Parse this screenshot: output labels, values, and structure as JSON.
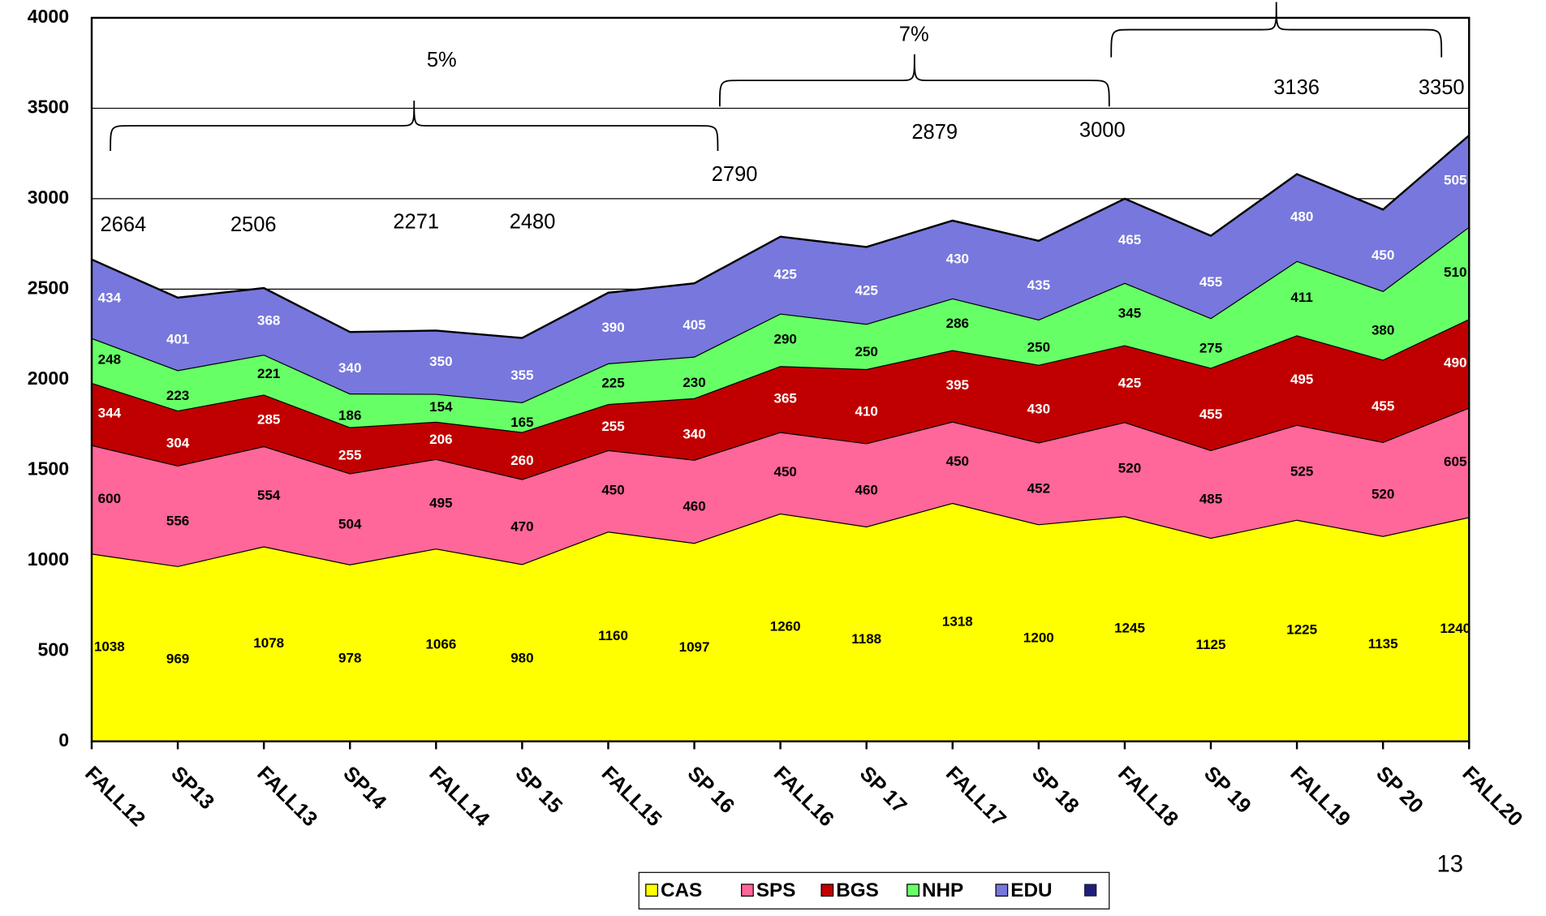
{
  "chart_data": {
    "type": "stacked_area",
    "categories": [
      "FALL12",
      "SP13",
      "FALL13",
      "SP14",
      "FALL14",
      "SP 15",
      "FALL15",
      "SP 16",
      "FALL16",
      "SP 17",
      "FALL17",
      "SP 18",
      "FALL18",
      "SP 19",
      "FALL19",
      "SP 20",
      "FALL20"
    ],
    "series": [
      {
        "name": "CAS",
        "color": "#ffff00",
        "label_color": "#000000",
        "values": [
          1038,
          969,
          1078,
          978,
          1066,
          980,
          1160,
          1097,
          1260,
          1188,
          1318,
          1200,
          1245,
          1125,
          1225,
          1135,
          1240
        ]
      },
      {
        "name": "SPS",
        "color": "#ff6699",
        "label_color": "#000000",
        "values": [
          600,
          556,
          554,
          504,
          495,
          470,
          450,
          460,
          450,
          460,
          450,
          452,
          520,
          485,
          525,
          520,
          605
        ]
      },
      {
        "name": "BGS",
        "color": "#c00000",
        "label_color": "#ffffff",
        "values": [
          344,
          304,
          285,
          255,
          206,
          260,
          255,
          340,
          365,
          410,
          395,
          430,
          425,
          455,
          495,
          455,
          490
        ]
      },
      {
        "name": "NHP",
        "color": "#66ff66",
        "label_color": "#000000",
        "values": [
          248,
          223,
          221,
          186,
          154,
          165,
          225,
          230,
          290,
          250,
          286,
          250,
          345,
          275,
          411,
          380,
          510
        ]
      },
      {
        "name": "EDU",
        "color": "#7777dd",
        "label_color": "#ffffff",
        "values": [
          434,
          401,
          368,
          340,
          350,
          355,
          390,
          405,
          425,
          425,
          430,
          435,
          465,
          455,
          480,
          450,
          505
        ]
      }
    ],
    "ylim": [
      0,
      4000
    ],
    "yticks": [
      0,
      500,
      1000,
      1500,
      2000,
      2500,
      3000,
      3500,
      4000
    ],
    "grid": true,
    "annotations": [
      "2664",
      "2506",
      "2271",
      "2480",
      "2790",
      "2879",
      "3000",
      "3136",
      "3350",
      "5%",
      "7%"
    ],
    "page_number": "13"
  }
}
